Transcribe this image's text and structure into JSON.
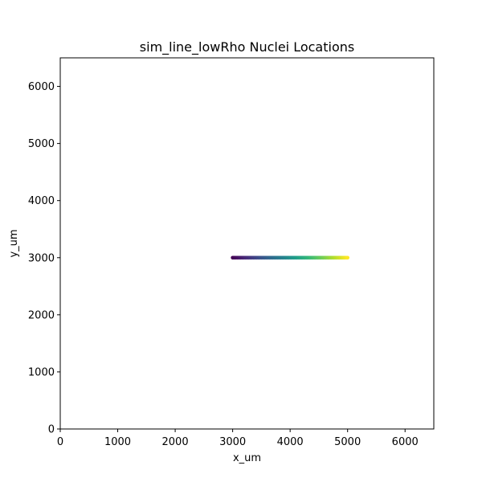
{
  "chart_data": {
    "type": "scatter",
    "title": "sim_line_lowRho Nuclei Locations",
    "xlabel": "x_um",
    "ylabel": "y_um",
    "xlim": [
      0,
      6500
    ],
    "ylim": [
      0,
      6500
    ],
    "xticks": [
      "0",
      "1000",
      "2000",
      "3000",
      "4000",
      "5000",
      "6000"
    ],
    "yticks": [
      "0",
      "1000",
      "2000",
      "3000",
      "4000",
      "5000",
      "6000"
    ],
    "grid": false,
    "colormap": "viridis",
    "series": [
      {
        "x_start": 3000,
        "x_end": 5000,
        "y": 3000,
        "point_count": 101
      }
    ]
  }
}
